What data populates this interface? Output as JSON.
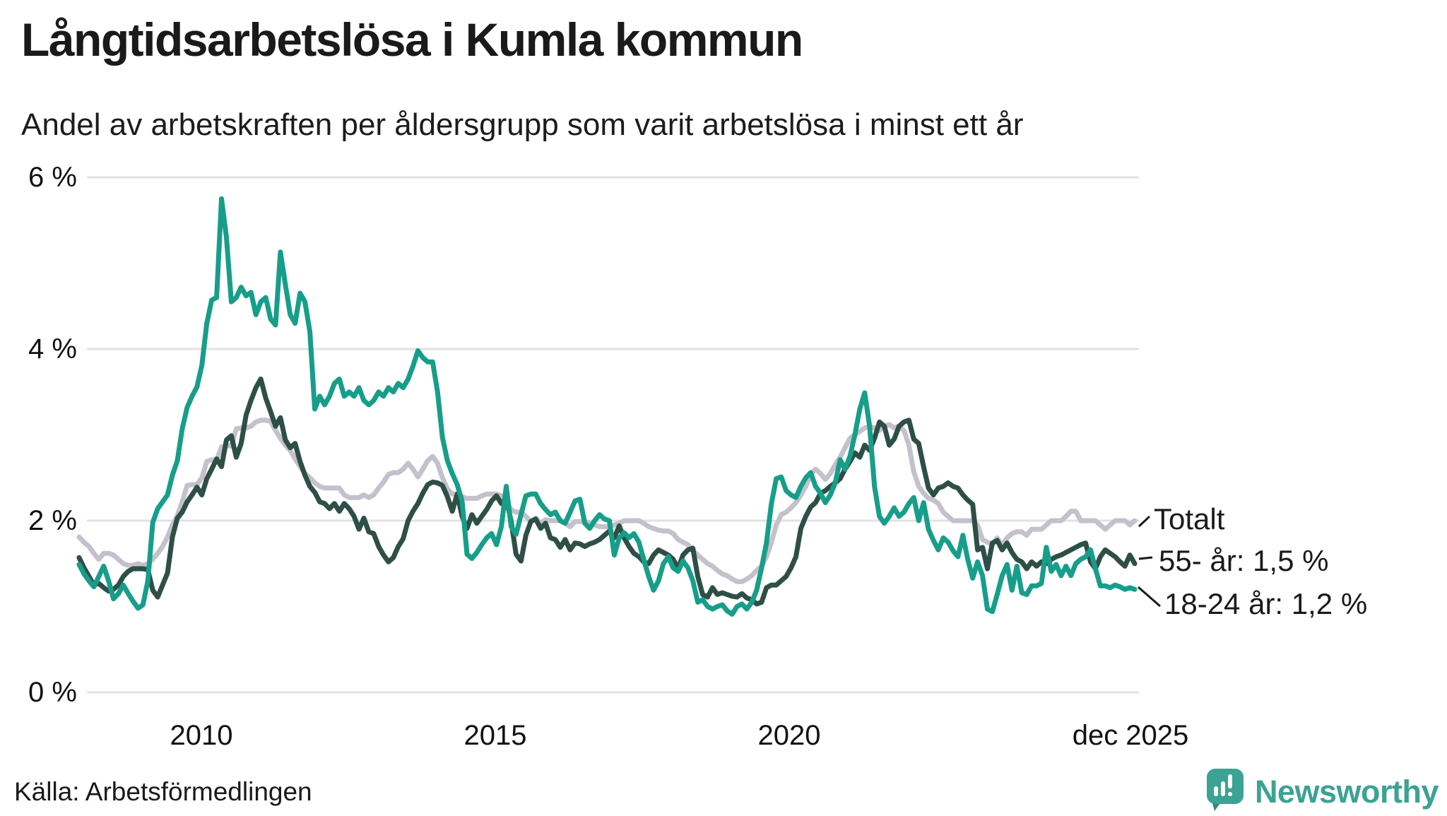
{
  "header": {
    "title": "Långtidsarbetslösa i Kumla kommun",
    "subtitle": "Andel av arbetskraften per åldersgrupp som varit arbetslösa i minst ett år"
  },
  "footer": {
    "source": "Källa: Arbetsförmedlingen",
    "brand": "Newsworthy"
  },
  "chart_data": {
    "type": "line",
    "title": "Långtidsarbetslösa i Kumla kommun",
    "subtitle": "Andel av arbetskraften per åldersgrupp som varit arbetslösa i minst ett år",
    "unit": "%",
    "ylim": [
      0,
      6
    ],
    "yticks": [
      "6 %",
      "4 %",
      "2 %",
      "0 %"
    ],
    "ytick_values": [
      6,
      4,
      2,
      0
    ],
    "xticks": [
      "2010",
      "2015",
      "2020",
      "dec 2025"
    ],
    "x_start_year": 2008,
    "x_end": "dec 2025",
    "points_per_year": 12,
    "grid": "horizontal",
    "grid_color": "#e2e1e6",
    "legend_position": "right-of-line-end",
    "series": [
      {
        "name": "Totalt",
        "legend_label": "Totalt",
        "color": "#c4c1cc",
        "values": [
          1.81,
          1.75,
          1.7,
          1.62,
          1.55,
          1.62,
          1.62,
          1.6,
          1.55,
          1.5,
          1.48,
          1.48,
          1.5,
          1.48,
          1.5,
          1.55,
          1.62,
          1.7,
          1.81,
          1.95,
          2.06,
          2.22,
          2.41,
          2.42,
          2.42,
          2.5,
          2.69,
          2.71,
          2.71,
          2.86,
          2.87,
          2.87,
          3.07,
          3.08,
          3.08,
          3.1,
          3.15,
          3.17,
          3.17,
          3.16,
          3.05,
          2.96,
          2.88,
          2.82,
          2.72,
          2.63,
          2.55,
          2.5,
          2.44,
          2.4,
          2.38,
          2.38,
          2.38,
          2.38,
          2.3,
          2.27,
          2.27,
          2.27,
          2.3,
          2.27,
          2.3,
          2.38,
          2.45,
          2.54,
          2.56,
          2.56,
          2.6,
          2.67,
          2.6,
          2.51,
          2.6,
          2.7,
          2.75,
          2.67,
          2.5,
          2.37,
          2.31,
          2.31,
          2.28,
          2.26,
          2.26,
          2.26,
          2.29,
          2.31,
          2.31,
          2.31,
          2.29,
          2.21,
          2.13,
          2.1,
          2.1,
          2.05,
          1.99,
          2.03,
          1.97,
          2.01,
          2.0,
          2.0,
          2.0,
          1.97,
          1.93,
          1.99,
          1.99,
          1.99,
          1.97,
          1.95,
          1.93,
          1.93,
          1.93,
          1.95,
          1.97,
          2.0,
          2.0,
          2.0,
          2.0,
          1.97,
          1.93,
          1.91,
          1.89,
          1.88,
          1.88,
          1.85,
          1.78,
          1.75,
          1.72,
          1.65,
          1.6,
          1.55,
          1.5,
          1.47,
          1.42,
          1.38,
          1.36,
          1.32,
          1.29,
          1.29,
          1.32,
          1.36,
          1.42,
          1.47,
          1.58,
          1.75,
          1.95,
          2.07,
          2.1,
          2.15,
          2.21,
          2.3,
          2.4,
          2.54,
          2.6,
          2.55,
          2.48,
          2.55,
          2.65,
          2.74,
          2.85,
          2.96,
          3.0,
          3.04,
          3.08,
          3.1,
          3.08,
          3.05,
          3.1,
          3.12,
          3.08,
          3.1,
          3.05,
          2.88,
          2.57,
          2.4,
          2.32,
          2.26,
          2.24,
          2.2,
          2.1,
          2.05,
          2.0,
          2.0,
          2.0,
          2.0,
          2.0,
          1.95,
          1.78,
          1.75,
          1.72,
          1.8,
          1.71,
          1.8,
          1.85,
          1.87,
          1.87,
          1.83,
          1.9,
          1.9,
          1.9,
          1.95,
          2.0,
          2.0,
          2.0,
          2.05,
          2.11,
          2.11,
          2.0,
          2.0,
          2.0,
          2.0,
          1.95,
          1.9,
          1.95,
          2.0,
          2.0,
          2.0,
          1.95,
          2.0
        ]
      },
      {
        "name": "55- år",
        "legend_label": "55- år: 1,5 %",
        "end_value_label": "1,5 %",
        "color": "#2e4f46",
        "values": [
          1.57,
          1.45,
          1.35,
          1.25,
          1.27,
          1.22,
          1.18,
          1.2,
          1.25,
          1.35,
          1.41,
          1.44,
          1.44,
          1.44,
          1.43,
          1.19,
          1.11,
          1.25,
          1.39,
          1.81,
          2.03,
          2.1,
          2.22,
          2.3,
          2.39,
          2.3,
          2.49,
          2.6,
          2.72,
          2.63,
          2.94,
          2.99,
          2.74,
          2.9,
          3.23,
          3.4,
          3.55,
          3.65,
          3.43,
          3.27,
          3.1,
          3.2,
          2.94,
          2.85,
          2.9,
          2.69,
          2.53,
          2.4,
          2.33,
          2.22,
          2.2,
          2.14,
          2.2,
          2.11,
          2.2,
          2.14,
          2.05,
          1.9,
          2.03,
          1.87,
          1.85,
          1.7,
          1.6,
          1.52,
          1.57,
          1.7,
          1.79,
          2.0,
          2.11,
          2.2,
          2.32,
          2.42,
          2.45,
          2.44,
          2.41,
          2.28,
          2.11,
          2.31,
          2.05,
          1.91,
          2.07,
          1.97,
          2.05,
          2.13,
          2.23,
          2.29,
          2.2,
          2.26,
          1.99,
          1.61,
          1.53,
          1.83,
          1.99,
          2.02,
          1.91,
          1.97,
          1.8,
          1.78,
          1.69,
          1.78,
          1.66,
          1.74,
          1.73,
          1.7,
          1.73,
          1.75,
          1.78,
          1.83,
          1.88,
          1.8,
          1.94,
          1.8,
          1.7,
          1.62,
          1.58,
          1.52,
          1.5,
          1.6,
          1.66,
          1.63,
          1.6,
          1.55,
          1.44,
          1.6,
          1.66,
          1.68,
          1.35,
          1.14,
          1.11,
          1.22,
          1.14,
          1.16,
          1.14,
          1.12,
          1.11,
          1.15,
          1.1,
          1.08,
          1.03,
          1.05,
          1.22,
          1.25,
          1.25,
          1.3,
          1.35,
          1.45,
          1.58,
          1.91,
          2.05,
          2.16,
          2.21,
          2.32,
          2.35,
          2.4,
          2.44,
          2.49,
          2.6,
          2.69,
          2.79,
          2.74,
          2.88,
          2.82,
          2.96,
          3.15,
          3.1,
          2.88,
          2.95,
          3.1,
          3.15,
          3.17,
          2.95,
          2.9,
          2.63,
          2.38,
          2.3,
          2.38,
          2.4,
          2.44,
          2.4,
          2.38,
          2.3,
          2.24,
          2.19,
          1.66,
          1.69,
          1.44,
          1.74,
          1.77,
          1.66,
          1.74,
          1.63,
          1.55,
          1.52,
          1.44,
          1.52,
          1.47,
          1.52,
          1.5,
          1.55,
          1.58,
          1.6,
          1.63,
          1.66,
          1.69,
          1.72,
          1.74,
          1.52,
          1.44,
          1.58,
          1.66,
          1.62,
          1.58,
          1.52,
          1.47,
          1.6,
          1.5
        ]
      },
      {
        "name": "18-24 år",
        "legend_label": "18-24 år: 1,2 %",
        "end_value_label": "1,2 %",
        "color": "#179e8a",
        "values": [
          1.49,
          1.38,
          1.3,
          1.23,
          1.35,
          1.47,
          1.3,
          1.09,
          1.15,
          1.25,
          1.15,
          1.06,
          0.98,
          1.02,
          1.3,
          1.98,
          2.14,
          2.22,
          2.3,
          2.53,
          2.7,
          3.07,
          3.32,
          3.45,
          3.56,
          3.81,
          4.3,
          4.57,
          4.6,
          5.75,
          5.3,
          4.55,
          4.6,
          4.72,
          4.62,
          4.66,
          4.4,
          4.55,
          4.6,
          4.35,
          4.28,
          5.13,
          4.75,
          4.4,
          4.3,
          4.65,
          4.55,
          4.2,
          3.3,
          3.45,
          3.35,
          3.45,
          3.6,
          3.65,
          3.45,
          3.5,
          3.45,
          3.55,
          3.4,
          3.35,
          3.4,
          3.5,
          3.45,
          3.55,
          3.5,
          3.6,
          3.55,
          3.65,
          3.8,
          3.98,
          3.9,
          3.85,
          3.85,
          3.5,
          2.97,
          2.7,
          2.55,
          2.42,
          2.23,
          1.61,
          1.56,
          1.63,
          1.72,
          1.8,
          1.85,
          1.72,
          1.93,
          2.4,
          1.93,
          1.84,
          2.07,
          2.29,
          2.31,
          2.31,
          2.2,
          2.13,
          2.07,
          2.1,
          2.0,
          1.97,
          2.1,
          2.23,
          2.25,
          1.97,
          1.91,
          2.0,
          2.07,
          2.02,
          2.0,
          1.6,
          1.8,
          1.86,
          1.8,
          1.85,
          1.75,
          1.55,
          1.35,
          1.19,
          1.3,
          1.5,
          1.58,
          1.45,
          1.41,
          1.53,
          1.45,
          1.3,
          1.05,
          1.08,
          1.0,
          0.97,
          1.0,
          1.02,
          0.95,
          0.91,
          1.0,
          1.03,
          0.97,
          1.05,
          1.19,
          1.45,
          1.74,
          2.2,
          2.49,
          2.51,
          2.35,
          2.3,
          2.27,
          2.4,
          2.5,
          2.56,
          2.4,
          2.32,
          2.21,
          2.3,
          2.44,
          2.71,
          2.6,
          2.75,
          3.0,
          3.3,
          3.49,
          3.1,
          2.4,
          2.05,
          1.97,
          2.05,
          2.15,
          2.05,
          2.1,
          2.2,
          2.27,
          2.0,
          2.21,
          1.9,
          1.77,
          1.66,
          1.8,
          1.75,
          1.65,
          1.58,
          1.83,
          1.55,
          1.33,
          1.52,
          1.36,
          0.97,
          0.94,
          1.14,
          1.36,
          1.49,
          1.19,
          1.47,
          1.16,
          1.14,
          1.24,
          1.24,
          1.27,
          1.69,
          1.41,
          1.49,
          1.36,
          1.47,
          1.36,
          1.5,
          1.55,
          1.58,
          1.66,
          1.44,
          1.24,
          1.24,
          1.22,
          1.25,
          1.23,
          1.2,
          1.22,
          1.2
        ]
      }
    ]
  }
}
